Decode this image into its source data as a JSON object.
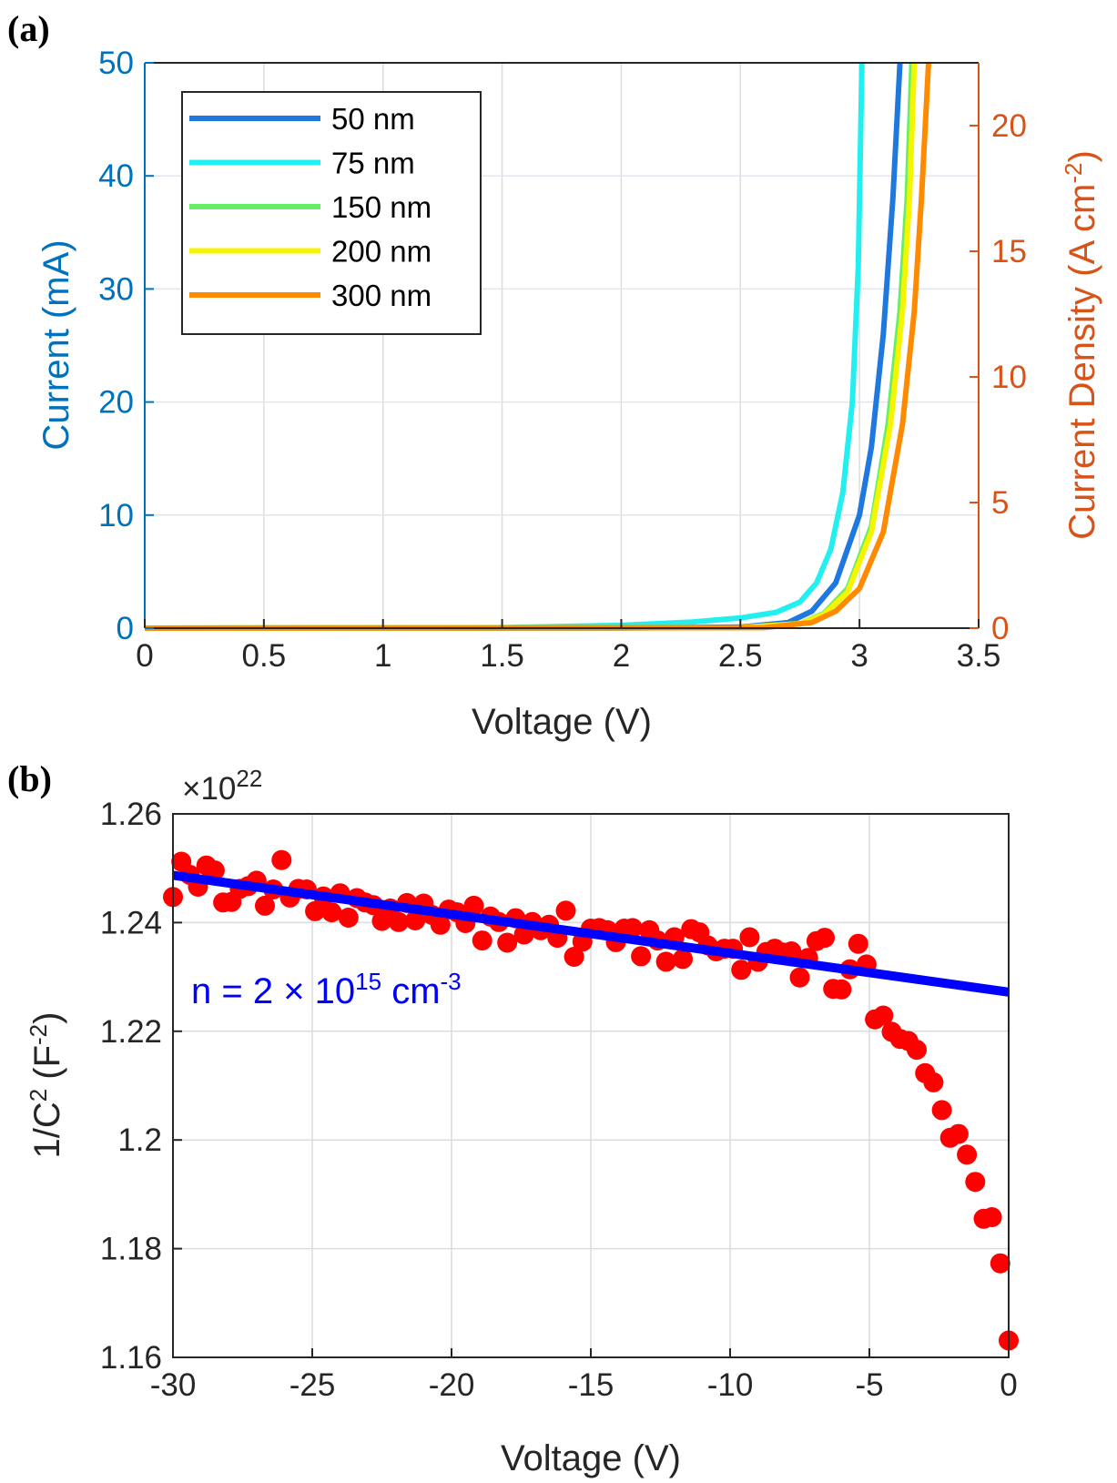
{
  "chart_data": [
    {
      "panel_label": "(a)",
      "type": "line",
      "xlabel": "Voltage (V)",
      "ylabel": "Current (mA)",
      "ylabel_right": "Current Density (A cm",
      "ylabel_right_sup": "-2",
      "ylabel_right_close": ")",
      "xlim": [
        0,
        3.5
      ],
      "ylim": [
        0,
        50
      ],
      "ylim_right": [
        0,
        22.5
      ],
      "x_ticks": [
        "0",
        "0.5",
        "1",
        "1.5",
        "2",
        "2.5",
        "3",
        "3.5"
      ],
      "y_ticks": [
        "0",
        "10",
        "20",
        "30",
        "40",
        "50"
      ],
      "y_ticks_right": [
        "0",
        "5",
        "10",
        "15",
        "20"
      ],
      "grid": true,
      "legend_position": "top-left",
      "colors": {
        "left_axis": "#0072bd",
        "right_axis": "#d95319"
      },
      "series": [
        {
          "name": "50 nm",
          "color": "#1f78e0",
          "x": [
            0,
            2.0,
            2.5,
            2.7,
            2.8,
            2.9,
            3.0,
            3.05,
            3.1,
            3.14,
            3.17
          ],
          "y": [
            0,
            0.02,
            0.1,
            0.5,
            1.5,
            4,
            10,
            16,
            26,
            38,
            50
          ]
        },
        {
          "name": "75 nm",
          "color": "#22f0f0",
          "x": [
            0,
            1.5,
            2.0,
            2.3,
            2.5,
            2.65,
            2.75,
            2.82,
            2.88,
            2.93,
            2.97,
            2.995,
            3.01
          ],
          "y": [
            0,
            0.05,
            0.25,
            0.55,
            0.9,
            1.4,
            2.3,
            4,
            7,
            12,
            20,
            32,
            50
          ]
        },
        {
          "name": "150 nm",
          "color": "#66ee66",
          "x": [
            0,
            2.5,
            2.75,
            2.85,
            2.95,
            3.05,
            3.12,
            3.17,
            3.2,
            3.22
          ],
          "y": [
            0,
            0.05,
            0.4,
            1.3,
            3.5,
            9,
            18,
            28,
            38,
            50
          ]
        },
        {
          "name": "200 nm",
          "color": "#f5f500",
          "x": [
            0,
            2.5,
            2.75,
            2.85,
            2.95,
            3.05,
            3.13,
            3.18,
            3.21,
            3.23
          ],
          "y": [
            0,
            0.05,
            0.4,
            1.2,
            3.2,
            8.5,
            18,
            28,
            38,
            50
          ]
        },
        {
          "name": "300 nm",
          "color": "#ff8a00",
          "x": [
            0,
            2.6,
            2.8,
            2.9,
            3.0,
            3.1,
            3.18,
            3.23,
            3.26,
            3.29
          ],
          "y": [
            0,
            0.05,
            0.5,
            1.5,
            3.5,
            8.5,
            18,
            28,
            38,
            50
          ]
        }
      ]
    },
    {
      "panel_label": "(b)",
      "type": "scatter",
      "xlabel": "Voltage (V)",
      "ylabel": "1/C",
      "ylabel_sup": "2",
      "ylabel_unit": "(F",
      "ylabel_unit_sup": "-2",
      "ylabel_unit_close": ")",
      "multiplier": "×10",
      "multiplier_exp": "22",
      "xlim": [
        -30,
        0
      ],
      "ylim": [
        1.16,
        1.26
      ],
      "x_ticks": [
        "-30",
        "-25",
        "-20",
        "-15",
        "-10",
        "-5",
        "0"
      ],
      "y_ticks": [
        "1.16",
        "1.18",
        "1.2",
        "1.22",
        "1.24",
        "1.26"
      ],
      "grid": true,
      "annotation": {
        "text": "n = 2 × 10",
        "sup": "15",
        "text2": " cm",
        "sup2": "-3",
        "color": "#0000ff"
      },
      "colors": {
        "points": "#ff0000",
        "fit": "#0000ff"
      },
      "fit_line": {
        "x": [
          -30,
          0
        ],
        "y": [
          1.2487,
          1.2272
        ]
      },
      "points": {
        "x": [
          -30.0,
          -29.7,
          -29.4,
          -29.1,
          -28.8,
          -28.5,
          -28.2,
          -27.9,
          -27.6,
          -27.3,
          -27.0,
          -26.7,
          -26.4,
          -26.1,
          -25.8,
          -25.5,
          -25.2,
          -24.9,
          -24.6,
          -24.3,
          -24.0,
          -23.7,
          -23.4,
          -23.1,
          -22.8,
          -22.5,
          -22.2,
          -21.9,
          -21.6,
          -21.3,
          -21.0,
          -20.7,
          -20.4,
          -20.1,
          -19.8,
          -19.5,
          -19.2,
          -18.9,
          -18.6,
          -18.3,
          -18.0,
          -17.7,
          -17.4,
          -17.1,
          -16.8,
          -16.5,
          -16.2,
          -15.9,
          -15.6,
          -15.3,
          -15.0,
          -14.7,
          -14.4,
          -14.1,
          -13.8,
          -13.5,
          -13.2,
          -12.9,
          -12.6,
          -12.3,
          -12.0,
          -11.7,
          -11.4,
          -11.1,
          -10.8,
          -10.5,
          -10.2,
          -9.9,
          -9.6,
          -9.3,
          -9.0,
          -8.7,
          -8.4,
          -8.1,
          -7.8,
          -7.5,
          -7.2,
          -6.9,
          -6.6,
          -6.3,
          -6.0,
          -5.7,
          -5.4,
          -5.1,
          -4.8,
          -4.5,
          -4.2,
          -3.9,
          -3.6,
          -3.3,
          -3.0,
          -2.7,
          -2.4,
          -2.1,
          -1.8,
          -1.5,
          -1.2,
          -0.9,
          -0.6,
          -0.3,
          0.0
        ],
        "y": [
          1.2447,
          1.2512,
          1.2488,
          1.2466,
          1.2505,
          1.2496,
          1.2437,
          1.2438,
          1.2462,
          1.2467,
          1.2477,
          1.2431,
          1.2461,
          1.2515,
          1.2446,
          1.2462,
          1.2461,
          1.2421,
          1.2448,
          1.2419,
          1.2454,
          1.2409,
          1.2445,
          1.2437,
          1.2432,
          1.2403,
          1.2426,
          1.2401,
          1.2436,
          1.2404,
          1.2435,
          1.2414,
          1.2396,
          1.2424,
          1.2419,
          1.2399,
          1.2431,
          1.2367,
          1.2411,
          1.2401,
          1.2363,
          1.2408,
          1.2378,
          1.2401,
          1.2386,
          1.2396,
          1.2372,
          1.2422,
          1.2337,
          1.2365,
          1.2389,
          1.239,
          1.2386,
          1.2364,
          1.2389,
          1.239,
          1.2338,
          1.2386,
          1.2367,
          1.2328,
          1.2373,
          1.2333,
          1.2388,
          1.2382,
          1.2358,
          1.2347,
          1.2352,
          1.2352,
          1.2313,
          1.2373,
          1.2328,
          1.2346,
          1.2352,
          1.2345,
          1.2347,
          1.2299,
          1.2335,
          1.2366,
          1.2372,
          1.2278,
          1.2277,
          1.2314,
          1.2361,
          1.2323,
          1.2222,
          1.2229,
          1.2199,
          1.2186,
          1.2182,
          1.2166,
          1.2123,
          1.2106,
          1.2055,
          1.2004,
          1.2011,
          1.1973,
          1.1923,
          1.1855,
          1.1858,
          1.1773,
          1.1631
        ]
      }
    }
  ]
}
